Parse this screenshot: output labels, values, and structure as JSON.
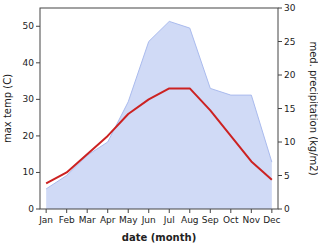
{
  "chart_data": {
    "type": "line",
    "xlabel": "date (month)",
    "ylabel": "max temp (C)",
    "y2label": "med. precipitation (kg/m2)",
    "categories": [
      "Jan",
      "Feb",
      "Mar",
      "Apr",
      "May",
      "Jun",
      "Jul",
      "Aug",
      "Sep",
      "Oct",
      "Nov",
      "Dec"
    ],
    "series": [
      {
        "type": "line",
        "color": "#cc2222",
        "values": [
          7,
          10,
          15,
          20,
          26,
          30,
          33,
          33,
          27,
          20,
          13,
          8
        ]
      },
      {
        "type": "area",
        "axis": "y2",
        "color": "#aabbee",
        "values": [
          3,
          5,
          8,
          10,
          16,
          25,
          28,
          27,
          18,
          17,
          17,
          7
        ]
      }
    ],
    "ylim": [
      0,
      55
    ],
    "yticks": [
      0,
      10,
      20,
      30,
      40,
      50
    ],
    "y2lim": [
      0,
      30
    ],
    "y2ticks": [
      0,
      5,
      10,
      15,
      20,
      25,
      30
    ]
  }
}
